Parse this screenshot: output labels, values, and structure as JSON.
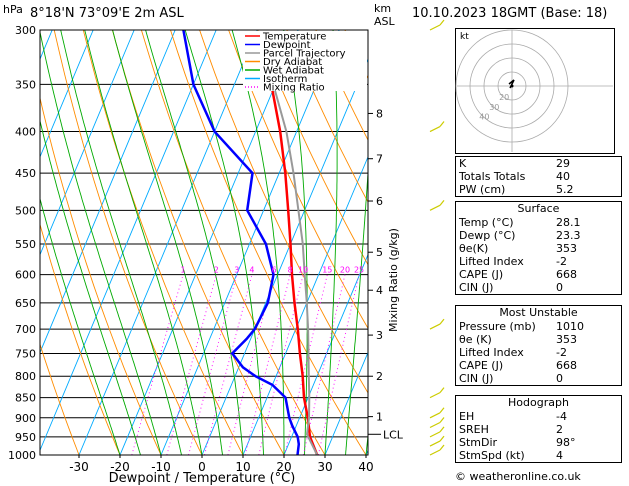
{
  "header": {
    "location": "8°18'N  73°09'E  2m  ASL",
    "datetime": "10.10.2023  18GMT  (Base: 18)",
    "km_label_line1": "km",
    "km_label_line2": "ASL",
    "hpa_label": "hPa",
    "copyright": "© weatheronline.co.uk"
  },
  "legend": [
    {
      "label": "Temperature",
      "color": "#ff0000",
      "style": "solid"
    },
    {
      "label": "Dewpoint",
      "color": "#0000ff",
      "style": "solid"
    },
    {
      "label": "Parcel Trajectory",
      "color": "#999999",
      "style": "solid"
    },
    {
      "label": "Dry Adiabat",
      "color": "#ff8c00",
      "style": "solid"
    },
    {
      "label": "Wet Adiabat",
      "color": "#00aa00",
      "style": "solid"
    },
    {
      "label": "Isotherm",
      "color": "#00aaff",
      "style": "solid"
    },
    {
      "label": "Mixing Ratio",
      "color": "#ff00ff",
      "style": "dotted"
    }
  ],
  "chart_data": {
    "type": "line",
    "subtype": "skew-T log-p diagram",
    "xlabel": "Dewpoint / Temperature (°C)",
    "ylabel": "",
    "right_axis_label": "Mixing Ratio (g/kg)",
    "x_ticks": [
      -30,
      -20,
      -10,
      0,
      10,
      20,
      30,
      40
    ],
    "pressure_ticks": [
      300,
      350,
      400,
      450,
      500,
      550,
      600,
      650,
      700,
      750,
      800,
      850,
      900,
      950,
      1000
    ],
    "km_ticks": [
      {
        "label": "8",
        "p": 380
      },
      {
        "label": "7",
        "p": 432
      },
      {
        "label": "6",
        "p": 487
      },
      {
        "label": "5",
        "p": 563
      },
      {
        "label": "4",
        "p": 627
      },
      {
        "label": "3",
        "p": 712
      },
      {
        "label": "2",
        "p": 800
      },
      {
        "label": "1",
        "p": 897
      }
    ],
    "lcl": {
      "label": "LCL",
      "p": 943
    },
    "mixing_ratio_labels": [
      "1",
      "2",
      "3",
      "4",
      "6",
      "8",
      "10",
      "15",
      "20",
      "25"
    ],
    "mixing_ratio_values": [
      1,
      2,
      3,
      4,
      6,
      8,
      10,
      15,
      20,
      25
    ],
    "series": [
      {
        "name": "Temperature",
        "color": "#ff0000",
        "points": [
          [
            1000,
            28.1
          ],
          [
            950,
            24.5
          ],
          [
            900,
            22.0
          ],
          [
            850,
            19.0
          ],
          [
            800,
            16.5
          ],
          [
            750,
            13.5
          ],
          [
            700,
            10.5
          ],
          [
            650,
            7.0
          ],
          [
            600,
            3.5
          ],
          [
            550,
            0.0
          ],
          [
            500,
            -4.0
          ],
          [
            450,
            -8.5
          ],
          [
            400,
            -14.0
          ],
          [
            350,
            -21.0
          ]
        ]
      },
      {
        "name": "Dewpoint",
        "color": "#0000ff",
        "points": [
          [
            1000,
            23.3
          ],
          [
            970,
            22.5
          ],
          [
            950,
            21.5
          ],
          [
            920,
            19.0
          ],
          [
            900,
            17.5
          ],
          [
            850,
            14.5
          ],
          [
            820,
            10.0
          ],
          [
            800,
            5.0
          ],
          [
            780,
            1.0
          ],
          [
            750,
            -3.0
          ],
          [
            720,
            -1.0
          ],
          [
            700,
            0.0
          ],
          [
            650,
            0.5
          ],
          [
            600,
            -1.0
          ],
          [
            550,
            -6.0
          ],
          [
            500,
            -14.0
          ],
          [
            450,
            -16.5
          ],
          [
            400,
            -30.0
          ],
          [
            350,
            -40.0
          ],
          [
            300,
            -48.0
          ]
        ]
      },
      {
        "name": "Parcel Trajectory",
        "color": "#999999",
        "points": [
          [
            1000,
            28.1
          ],
          [
            943,
            23.5
          ],
          [
            900,
            22.3
          ],
          [
            850,
            20.3
          ],
          [
            800,
            18.0
          ],
          [
            750,
            15.6
          ],
          [
            700,
            13.0
          ],
          [
            650,
            10.0
          ],
          [
            600,
            6.6
          ],
          [
            550,
            3.0
          ],
          [
            500,
            -1.5
          ],
          [
            450,
            -6.5
          ],
          [
            400,
            -12.5
          ],
          [
            350,
            -20.5
          ]
        ]
      }
    ]
  },
  "hodograph": {
    "label": "kt",
    "ring_labels": [
      "40",
      "30",
      "20"
    ]
  },
  "indices": [
    {
      "label": "K",
      "value": "29"
    },
    {
      "label": "Totals Totals",
      "value": "40"
    },
    {
      "label": "PW (cm)",
      "value": "5.2"
    }
  ],
  "surface": {
    "title": "Surface",
    "rows": [
      {
        "label": "Temp (°C)",
        "value": "28.1"
      },
      {
        "label": "Dewp (°C)",
        "value": "23.3"
      },
      {
        "label": "θe(K)",
        "value": "353"
      },
      {
        "label": "Lifted Index",
        "value": "-2"
      },
      {
        "label": "CAPE (J)",
        "value": "668"
      },
      {
        "label": "CIN (J)",
        "value": "0"
      }
    ]
  },
  "most_unstable": {
    "title": "Most Unstable",
    "rows": [
      {
        "label": "Pressure (mb)",
        "value": "1010"
      },
      {
        "label": "θe (K)",
        "value": "353"
      },
      {
        "label": "Lifted Index",
        "value": "-2"
      },
      {
        "label": "CAPE (J)",
        "value": "668"
      },
      {
        "label": "CIN (J)",
        "value": "0"
      }
    ]
  },
  "hodograph_table": {
    "title": "Hodograph",
    "rows": [
      {
        "label": "EH",
        "value": "-4"
      },
      {
        "label": "SREH",
        "value": "2"
      },
      {
        "label": "StmDir",
        "value": "98°"
      },
      {
        "label": "StmSpd (kt)",
        "value": "4"
      }
    ]
  }
}
